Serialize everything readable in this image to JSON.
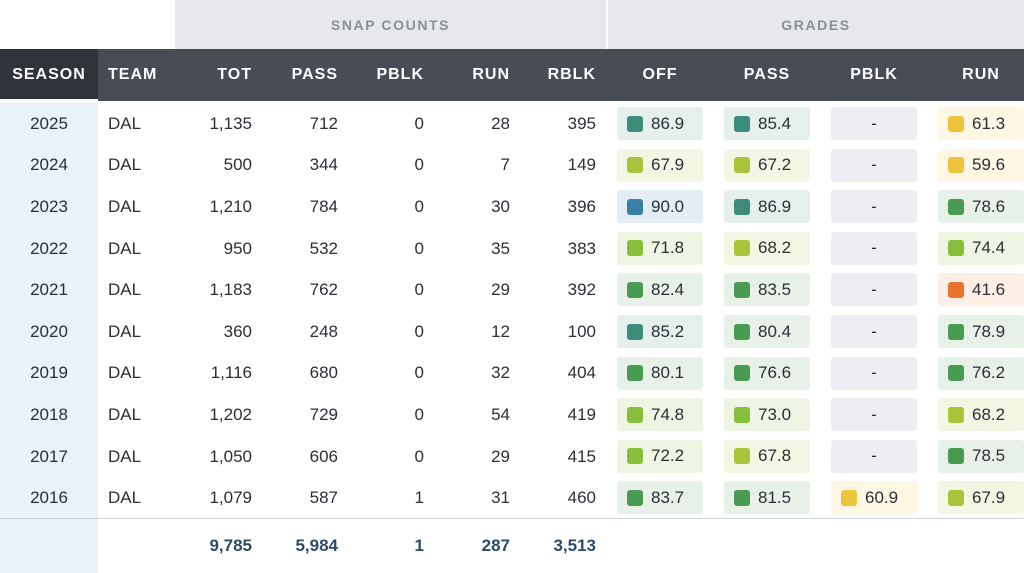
{
  "groups": {
    "snap_counts": "SNAP COUNTS",
    "grades": "GRADES"
  },
  "columns": {
    "season": "SEASON",
    "team": "TEAM",
    "tot": "TOT",
    "pass": "PASS",
    "pblk": "PBLK",
    "run": "RUN",
    "rblk": "RBLK",
    "off": "OFF",
    "g_pass": "PASS",
    "g_pblk": "PBLK",
    "g_run": "RUN"
  },
  "grade_colors": {
    "blue": "#3a7fa8",
    "teal": "#3c8c7c",
    "green": "#4a9b52",
    "lime": "#86bf3c",
    "yellowgreen": "#a8c43a",
    "yellow": "#f0c33c",
    "orange": "#e97330",
    "none": "#e8eaed"
  },
  "rows": [
    {
      "season": "2025",
      "team": "DAL",
      "tot": "1,135",
      "pass": "712",
      "pblk": "0",
      "run": "28",
      "rblk": "395",
      "off": {
        "v": "86.9",
        "c": "teal"
      },
      "gpass": {
        "v": "85.4",
        "c": "teal"
      },
      "gpblk": {
        "v": "-",
        "c": "none"
      },
      "grun": {
        "v": "61.3",
        "c": "yellow"
      }
    },
    {
      "season": "2024",
      "team": "DAL",
      "tot": "500",
      "pass": "344",
      "pblk": "0",
      "run": "7",
      "rblk": "149",
      "off": {
        "v": "67.9",
        "c": "yellowgreen"
      },
      "gpass": {
        "v": "67.2",
        "c": "yellowgreen"
      },
      "gpblk": {
        "v": "-",
        "c": "none"
      },
      "grun": {
        "v": "59.6",
        "c": "yellow"
      }
    },
    {
      "season": "2023",
      "team": "DAL",
      "tot": "1,210",
      "pass": "784",
      "pblk": "0",
      "run": "30",
      "rblk": "396",
      "off": {
        "v": "90.0",
        "c": "blue"
      },
      "gpass": {
        "v": "86.9",
        "c": "teal"
      },
      "gpblk": {
        "v": "-",
        "c": "none"
      },
      "grun": {
        "v": "78.6",
        "c": "green"
      }
    },
    {
      "season": "2022",
      "team": "DAL",
      "tot": "950",
      "pass": "532",
      "pblk": "0",
      "run": "35",
      "rblk": "383",
      "off": {
        "v": "71.8",
        "c": "lime"
      },
      "gpass": {
        "v": "68.2",
        "c": "yellowgreen"
      },
      "gpblk": {
        "v": "-",
        "c": "none"
      },
      "grun": {
        "v": "74.4",
        "c": "lime"
      }
    },
    {
      "season": "2021",
      "team": "DAL",
      "tot": "1,183",
      "pass": "762",
      "pblk": "0",
      "run": "29",
      "rblk": "392",
      "off": {
        "v": "82.4",
        "c": "green"
      },
      "gpass": {
        "v": "83.5",
        "c": "green"
      },
      "gpblk": {
        "v": "-",
        "c": "none"
      },
      "grun": {
        "v": "41.6",
        "c": "orange"
      }
    },
    {
      "season": "2020",
      "team": "DAL",
      "tot": "360",
      "pass": "248",
      "pblk": "0",
      "run": "12",
      "rblk": "100",
      "off": {
        "v": "85.2",
        "c": "teal"
      },
      "gpass": {
        "v": "80.4",
        "c": "green"
      },
      "gpblk": {
        "v": "-",
        "c": "none"
      },
      "grun": {
        "v": "78.9",
        "c": "green"
      }
    },
    {
      "season": "2019",
      "team": "DAL",
      "tot": "1,116",
      "pass": "680",
      "pblk": "0",
      "run": "32",
      "rblk": "404",
      "off": {
        "v": "80.1",
        "c": "green"
      },
      "gpass": {
        "v": "76.6",
        "c": "green"
      },
      "gpblk": {
        "v": "-",
        "c": "none"
      },
      "grun": {
        "v": "76.2",
        "c": "green"
      }
    },
    {
      "season": "2018",
      "team": "DAL",
      "tot": "1,202",
      "pass": "729",
      "pblk": "0",
      "run": "54",
      "rblk": "419",
      "off": {
        "v": "74.8",
        "c": "lime"
      },
      "gpass": {
        "v": "73.0",
        "c": "lime"
      },
      "gpblk": {
        "v": "-",
        "c": "none"
      },
      "grun": {
        "v": "68.2",
        "c": "yellowgreen"
      }
    },
    {
      "season": "2017",
      "team": "DAL",
      "tot": "1,050",
      "pass": "606",
      "pblk": "0",
      "run": "29",
      "rblk": "415",
      "off": {
        "v": "72.2",
        "c": "lime"
      },
      "gpass": {
        "v": "67.8",
        "c": "yellowgreen"
      },
      "gpblk": {
        "v": "-",
        "c": "none"
      },
      "grun": {
        "v": "78.5",
        "c": "green"
      }
    },
    {
      "season": "2016",
      "team": "DAL",
      "tot": "1,079",
      "pass": "587",
      "pblk": "1",
      "run": "31",
      "rblk": "460",
      "off": {
        "v": "83.7",
        "c": "green"
      },
      "gpass": {
        "v": "81.5",
        "c": "green"
      },
      "gpblk": {
        "v": "60.9",
        "c": "yellow"
      },
      "grun": {
        "v": "67.9",
        "c": "yellowgreen"
      }
    }
  ],
  "totals": {
    "tot": "9,785",
    "pass": "5,984",
    "pblk": "1",
    "run": "287",
    "rblk": "3,513"
  }
}
